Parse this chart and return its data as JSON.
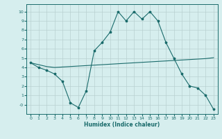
{
  "title": "",
  "xlabel": "Humidex (Indice chaleur)",
  "xlim": [
    -0.5,
    23.5
  ],
  "ylim": [
    -1.0,
    10.8
  ],
  "xticks": [
    0,
    1,
    2,
    3,
    4,
    5,
    6,
    7,
    8,
    9,
    10,
    11,
    12,
    13,
    14,
    15,
    16,
    17,
    18,
    19,
    20,
    21,
    22,
    23
  ],
  "yticks": [
    0,
    1,
    2,
    3,
    4,
    5,
    6,
    7,
    8,
    9,
    10
  ],
  "bg_color": "#d6eeee",
  "line_color": "#1a6b6b",
  "grid_color": "#b8d0d0",
  "line1_x": [
    0,
    1,
    2,
    3,
    4,
    5,
    6,
    7,
    8,
    9,
    10,
    11,
    12,
    13,
    14,
    15,
    16,
    17,
    18,
    19,
    20,
    21,
    22,
    23
  ],
  "line1_y": [
    4.5,
    4.0,
    3.7,
    3.3,
    2.5,
    0.2,
    -0.3,
    1.5,
    5.8,
    6.7,
    7.8,
    10.0,
    9.0,
    10.0,
    9.2,
    10.0,
    9.0,
    6.7,
    5.0,
    3.3,
    2.0,
    1.8,
    1.0,
    -0.5
  ],
  "line2_x": [
    0,
    1,
    2,
    3,
    4,
    5,
    6,
    7,
    8,
    9,
    10,
    11,
    12,
    13,
    14,
    15,
    16,
    17,
    18,
    19,
    20,
    21,
    22,
    23
  ],
  "line2_y": [
    4.5,
    4.3,
    4.1,
    4.0,
    4.05,
    4.1,
    4.15,
    4.2,
    4.25,
    4.3,
    4.35,
    4.4,
    4.45,
    4.5,
    4.55,
    4.6,
    4.65,
    4.7,
    4.75,
    4.8,
    4.85,
    4.9,
    4.95,
    5.05
  ]
}
